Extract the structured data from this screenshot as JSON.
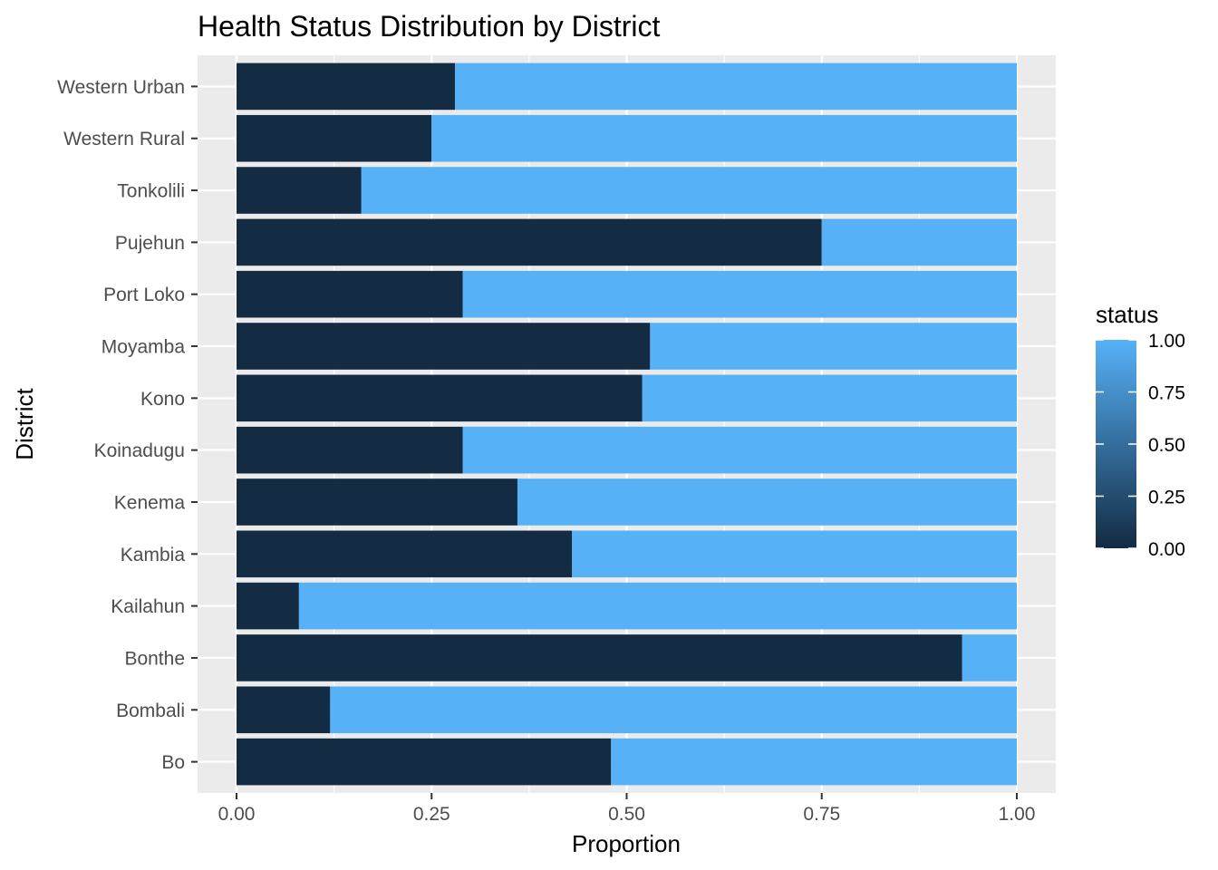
{
  "chart_data": {
    "type": "bar",
    "orientation": "horizontal",
    "stacked": true,
    "title": "Health Status Distribution by District",
    "xlabel": "Proportion",
    "ylabel": "District",
    "xlim": [
      0,
      1
    ],
    "x_ticks": [
      "0.00",
      "0.25",
      "0.50",
      "0.75",
      "1.00"
    ],
    "x_tick_values": [
      0,
      0.25,
      0.5,
      0.75,
      1.0
    ],
    "grid": true,
    "categories": [
      "Bo",
      "Bombali",
      "Bonthe",
      "Kailahun",
      "Kambia",
      "Kenema",
      "Koinadugu",
      "Kono",
      "Moyamba",
      "Port Loko",
      "Pujehun",
      "Tonkolili",
      "Western Rural",
      "Western Urban"
    ],
    "series": [
      {
        "status": 0,
        "color": "#132B43",
        "values": [
          0.48,
          0.12,
          0.93,
          0.08,
          0.43,
          0.36,
          0.29,
          0.52,
          0.53,
          0.29,
          0.75,
          0.16,
          0.25,
          0.28
        ]
      },
      {
        "status": 1,
        "color": "#56B1F7",
        "values": [
          0.52,
          0.88,
          0.07,
          0.92,
          0.57,
          0.64,
          0.71,
          0.48,
          0.47,
          0.71,
          0.25,
          0.84,
          0.75,
          0.72
        ]
      }
    ],
    "legend": {
      "title": "status",
      "placement": "right",
      "type": "colorbar",
      "low_color": "#132B43",
      "high_color": "#56B1F7",
      "labels": [
        "0.00",
        "0.25",
        "0.50",
        "0.75",
        "1.00"
      ],
      "values": [
        0,
        0.25,
        0.5,
        0.75,
        1.0
      ]
    },
    "panel_background": "#EBEBEB",
    "grid_color": "#FFFFFF"
  }
}
